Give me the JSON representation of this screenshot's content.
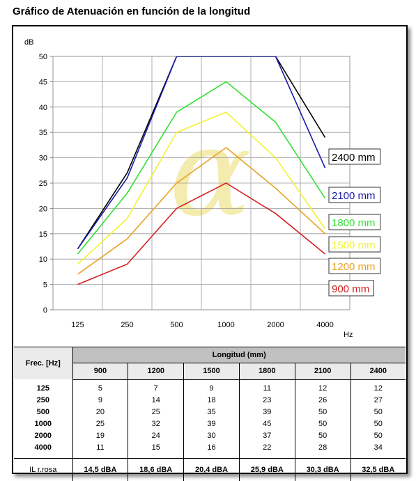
{
  "title": "Gráfico de Atenuación en función de la longitud",
  "chart_data": {
    "type": "line",
    "title": "Gráfico de Atenuación en función de la longitud",
    "ylabel": "dB",
    "xlabel": "Hz",
    "ylim": [
      0,
      50
    ],
    "yticks": [
      0,
      5,
      10,
      15,
      20,
      25,
      30,
      35,
      40,
      45,
      50
    ],
    "categories": [
      "125",
      "250",
      "500",
      "1000",
      "2000",
      "4000"
    ],
    "grid": true,
    "legend": "right",
    "series": [
      {
        "name": "2400 mm",
        "color": "#000000",
        "values": [
          12,
          27,
          50,
          50,
          50,
          34
        ]
      },
      {
        "name": "2100 mm",
        "color": "#1a1aa8",
        "values": [
          12,
          26,
          50,
          50,
          50,
          28
        ]
      },
      {
        "name": "1800 mm",
        "color": "#33e033",
        "values": [
          11,
          23,
          39,
          45,
          37,
          22
        ]
      },
      {
        "name": "1500 mm",
        "color": "#f2f233",
        "values": [
          9,
          18,
          35,
          39,
          30,
          16
        ]
      },
      {
        "name": "1200 mm",
        "color": "#e8a020",
        "values": [
          7,
          14,
          25,
          32,
          24,
          15
        ]
      },
      {
        "name": "900 mm",
        "color": "#d42020",
        "values": [
          5,
          9,
          20,
          25,
          19,
          11
        ]
      }
    ]
  },
  "table": {
    "freq_header": "Frec. [Hz]",
    "length_header": "Longitud (mm)",
    "lengths": [
      "900",
      "1200",
      "1500",
      "1800",
      "2100",
      "2400"
    ],
    "rows": [
      {
        "freq": "125",
        "values": [
          "5",
          "7",
          "9",
          "11",
          "12",
          "12"
        ]
      },
      {
        "freq": "250",
        "values": [
          "9",
          "14",
          "18",
          "23",
          "26",
          "27"
        ]
      },
      {
        "freq": "500",
        "values": [
          "20",
          "25",
          "35",
          "39",
          "50",
          "50"
        ]
      },
      {
        "freq": "1000",
        "values": [
          "25",
          "32",
          "39",
          "45",
          "50",
          "50"
        ]
      },
      {
        "freq": "2000",
        "values": [
          "19",
          "24",
          "30",
          "37",
          "50",
          "50"
        ]
      },
      {
        "freq": "4000",
        "values": [
          "11",
          "15",
          "16",
          "22",
          "28",
          "34"
        ]
      }
    ],
    "il_label": "IL r.rosa",
    "il_values": [
      "14,5 dBA",
      "18,6 dBA",
      "20,4 dBA",
      "25,9 dBA",
      "30,3 dBA",
      "32,5 dBA"
    ]
  }
}
